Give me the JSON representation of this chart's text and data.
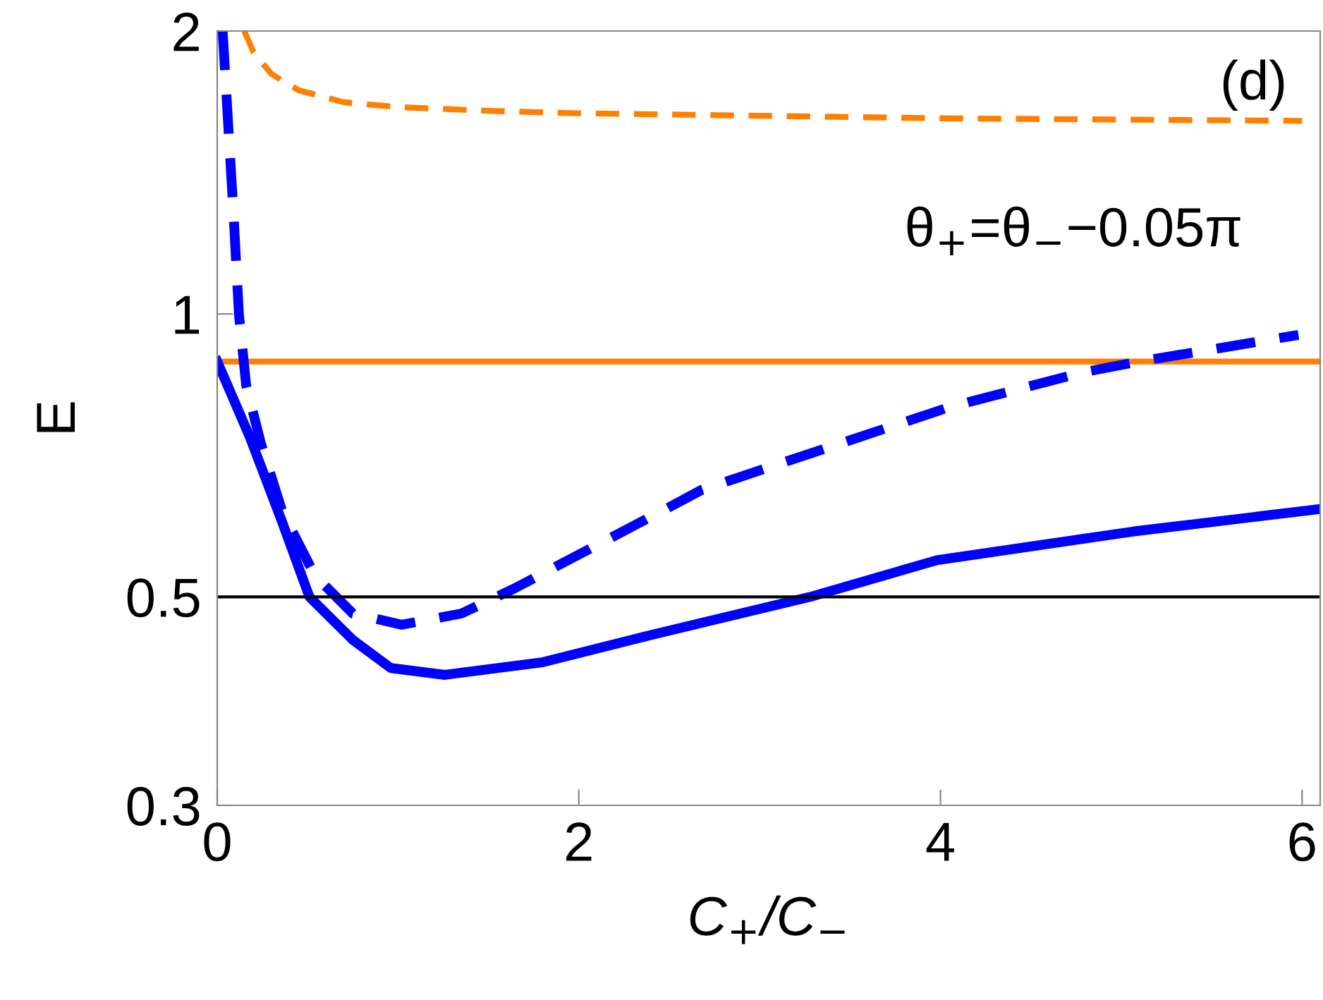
{
  "chart_data": {
    "type": "line",
    "xlabel": "C$_{+}$/C$_{−}$",
    "ylabel": "E",
    "log": "y",
    "xlim": [
      0,
      6.1
    ],
    "xticks": [
      0,
      2,
      4,
      6
    ],
    "ylim": [
      0.3,
      2
    ],
    "yticks": [
      0.3,
      0.5,
      1,
      2
    ],
    "grid": false,
    "legend": false,
    "marker": "none",
    "series": [
      {
        "color": "#ff7f00",
        "line_style": "dashed",
        "x": [
          0.15,
          0.2,
          0.3,
          0.45,
          0.7,
          1,
          1.5,
          2,
          3,
          4,
          5,
          6
        ],
        "values": [
          2.0,
          1.9,
          1.8,
          1.73,
          1.68,
          1.66,
          1.645,
          1.635,
          1.625,
          1.615,
          1.61,
          1.605
        ]
      },
      {
        "color": "#ff7f00",
        "line_style": "solid",
        "x": [
          0,
          6.1
        ],
        "values": [
          0.89,
          0.89
        ]
      },
      {
        "color": "#0000ff",
        "line_style": "solid",
        "x": [
          0,
          0.18,
          0.36,
          0.51,
          0.75,
          0.96,
          1.26,
          1.8,
          2.39,
          3.28,
          3.98,
          5.07,
          6.1
        ],
        "values": [
          0.89,
          0.74,
          0.6,
          0.5,
          0.45,
          0.42,
          0.413,
          0.426,
          0.455,
          0.5,
          0.547,
          0.587,
          0.62
        ]
      },
      {
        "color": "#0000ff",
        "line_style": "dashed",
        "x": [
          0.03,
          0.09,
          0.12,
          0.16,
          0.24,
          0.36,
          0.54,
          0.75,
          1.02,
          1.35,
          1.64,
          2.48,
          2.68,
          3.37,
          4.05,
          4.78,
          5.1,
          5.98
        ],
        "values": [
          2.0,
          1.28,
          1.0,
          0.84,
          0.73,
          0.616,
          0.527,
          0.48,
          0.467,
          0.48,
          0.51,
          0.62,
          0.65,
          0.72,
          0.796,
          0.866,
          0.89,
          0.95
        ]
      }
    ],
    "ref_lines": [
      {
        "axis": "y",
        "value": 0.5,
        "color": "#000000",
        "line_style": "solid"
      }
    ],
    "annotations": [
      "(d)",
      "θ$_{+}$=θ$_{−}$−0.05π"
    ]
  }
}
